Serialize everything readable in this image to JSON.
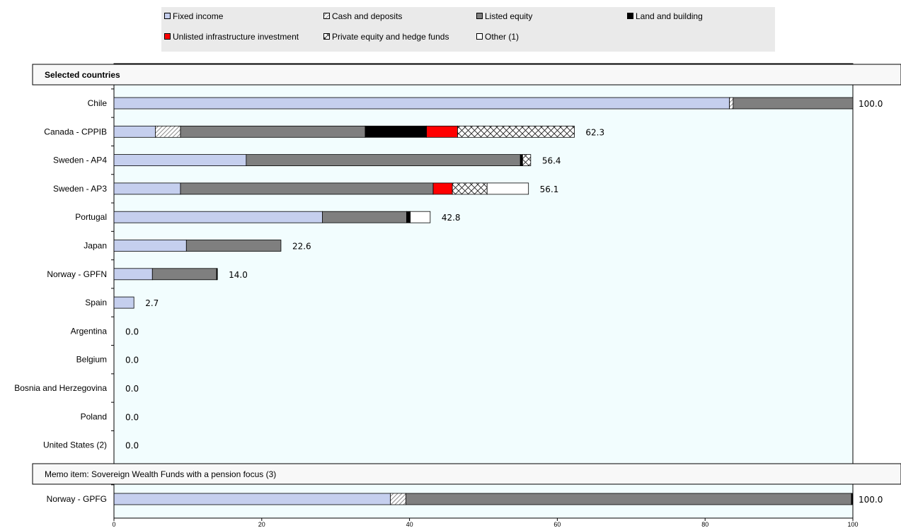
{
  "chart_data": {
    "type": "bar",
    "orientation": "horizontal",
    "stacked": true,
    "xlim": [
      0,
      100
    ],
    "x_ticks": [
      "0",
      "20",
      "40",
      "60",
      "80",
      "100"
    ],
    "legend": {
      "placement": "top",
      "entries": [
        {
          "key": "fixed_income",
          "label": "Fixed income"
        },
        {
          "key": "cash",
          "label": "Cash and deposits"
        },
        {
          "key": "listed_equity",
          "label": "Listed equity"
        },
        {
          "key": "land",
          "label": "Land and building"
        },
        {
          "key": "infra",
          "label": "Unlisted infrastructure investment"
        },
        {
          "key": "private",
          "label": "Private equity and hedge funds"
        },
        {
          "key": "other",
          "label": "Other (1)"
        }
      ]
    },
    "styles": {
      "fixed_income": {
        "fill": "#c5cfee",
        "pattern": "none"
      },
      "cash": {
        "fill": "#ffffff",
        "pattern": "diagonal"
      },
      "listed_equity": {
        "fill": "#7f7f7f",
        "pattern": "none"
      },
      "land": {
        "fill": "#000000",
        "pattern": "none"
      },
      "infra": {
        "fill": "#ff0000",
        "pattern": "none"
      },
      "private": {
        "fill": "#ffffff",
        "pattern": "crosshatch"
      },
      "other": {
        "fill": "#ffffff",
        "pattern": "none"
      }
    },
    "plot_background": "#f2fdfe",
    "groups": [
      {
        "label": "Selected countries",
        "rows": [
          {
            "name": "Chile",
            "total": "100.0",
            "segments": {
              "fixed_income": 83.3,
              "cash": 0.5,
              "listed_equity": 16.2
            }
          },
          {
            "name": "Canada - CPPIB",
            "total": "62.3",
            "segments": {
              "fixed_income": 5.6,
              "cash": 3.4,
              "listed_equity": 25.0,
              "land": 8.3,
              "infra": 4.2,
              "private": 15.8
            }
          },
          {
            "name": "Sweden - AP4",
            "total": "56.4",
            "segments": {
              "fixed_income": 17.9,
              "listed_equity": 37.1,
              "land": 0.3,
              "private": 1.1
            }
          },
          {
            "name": "Sweden - AP3",
            "total": "56.1",
            "segments": {
              "fixed_income": 9.0,
              "listed_equity": 34.2,
              "infra": 2.6,
              "private": 4.7,
              "other": 5.6
            }
          },
          {
            "name": "Portugal",
            "total": "42.8",
            "segments": {
              "fixed_income": 28.2,
              "listed_equity": 11.4,
              "land": 0.5,
              "other": 2.7
            }
          },
          {
            "name": "Japan",
            "total": "22.6",
            "segments": {
              "fixed_income": 9.8,
              "listed_equity": 12.8
            }
          },
          {
            "name": "Norway - GPFN",
            "total": "14.0",
            "segments": {
              "fixed_income": 5.2,
              "land": 0.1,
              "listed_equity": 8.7
            }
          },
          {
            "name": "Spain",
            "total": "2.7",
            "segments": {
              "fixed_income": 2.7
            }
          },
          {
            "name": "Argentina",
            "total": "0.0",
            "segments": {}
          },
          {
            "name": "Belgium",
            "total": "0.0",
            "segments": {}
          },
          {
            "name": "Bosnia and Herzegovina",
            "total": "0.0",
            "segments": {}
          },
          {
            "name": "Poland",
            "total": "0.0",
            "segments": {}
          },
          {
            "name": "United States (2)",
            "total": "0.0",
            "segments": {}
          }
        ]
      },
      {
        "label": "Memo item: Sovereign Wealth  Funds with a pension focus (3)",
        "rows": [
          {
            "name": "Norway - GPFG",
            "total": "100.0",
            "segments": {
              "fixed_income": 37.4,
              "cash": 2.1,
              "listed_equity": 60.3,
              "land": 0.2
            }
          }
        ]
      }
    ]
  }
}
